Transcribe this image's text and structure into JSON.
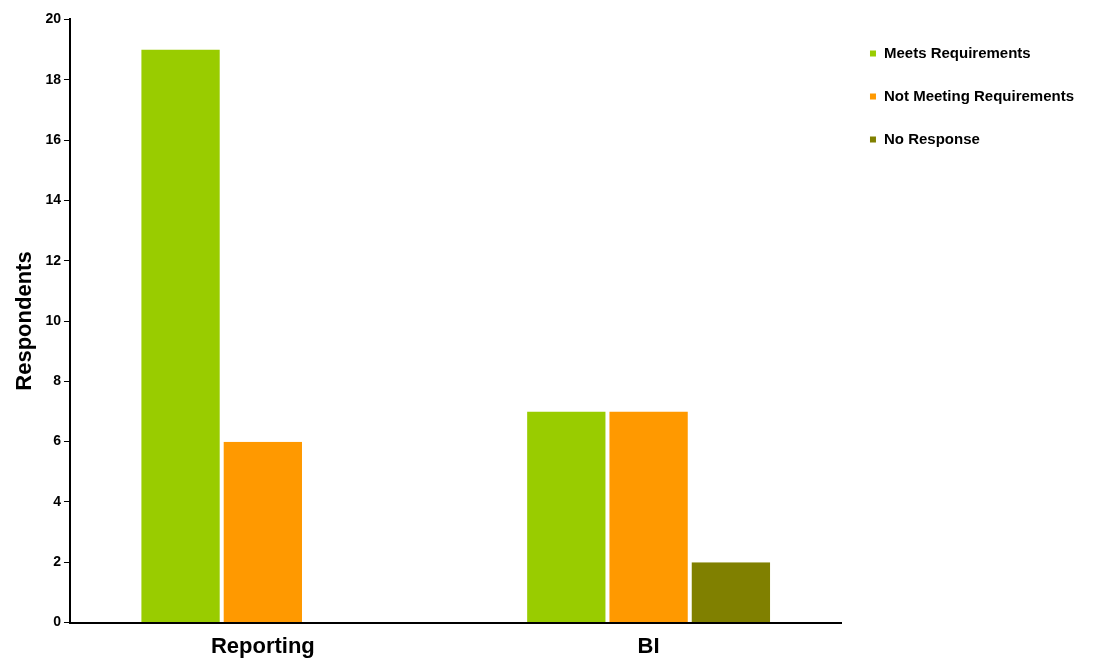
{
  "chart_data": {
    "type": "bar",
    "ylabel": "Respondents",
    "categories": [
      "Reporting",
      "BI"
    ],
    "series": [
      {
        "name": "Meets Requirements",
        "color": "#99cc00",
        "values": [
          19,
          7
        ]
      },
      {
        "name": "Not Meeting Requirements",
        "color": "#ff9900",
        "values": [
          6,
          7
        ]
      },
      {
        "name": "No Response",
        "color": "#808000",
        "values": [
          null,
          2
        ]
      }
    ],
    "ylim": [
      0,
      20
    ],
    "yticks": [
      0,
      2,
      4,
      6,
      8,
      10,
      12,
      14,
      16,
      18,
      20
    ],
    "grid": false,
    "legend": "top right"
  }
}
